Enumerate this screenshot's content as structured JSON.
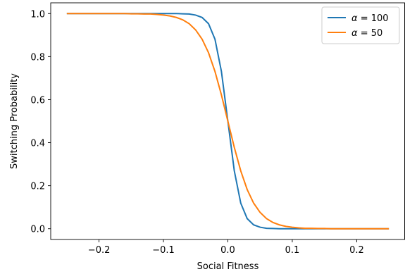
{
  "chart_data": {
    "type": "line",
    "title": "",
    "xlabel": "Social Fitness",
    "ylabel": "Switching Probability",
    "xlim": [
      -0.275,
      0.275
    ],
    "ylim": [
      -0.05,
      1.05
    ],
    "xticks": [
      -0.2,
      -0.1,
      0.0,
      0.1,
      0.2
    ],
    "xtick_labels": [
      "−0.2",
      "−0.1",
      "0.0",
      "0.1",
      "0.2"
    ],
    "yticks": [
      0.0,
      0.2,
      0.4,
      0.6,
      0.8,
      1.0
    ],
    "ytick_labels": [
      "0.0",
      "0.2",
      "0.4",
      "0.6",
      "0.8",
      "1.0"
    ],
    "grid": false,
    "legend_position": "top-right",
    "x": [
      -0.25,
      -0.24,
      -0.23,
      -0.22,
      -0.21,
      -0.2,
      -0.19,
      -0.18,
      -0.17,
      -0.16,
      -0.15,
      -0.14,
      -0.13,
      -0.12,
      -0.11,
      -0.1,
      -0.09,
      -0.08,
      -0.07,
      -0.06,
      -0.05,
      -0.04,
      -0.03,
      -0.02,
      -0.01,
      0.0,
      0.01,
      0.02,
      0.03,
      0.04,
      0.05,
      0.06,
      0.07,
      0.08,
      0.09,
      0.1,
      0.11,
      0.12,
      0.13,
      0.14,
      0.15,
      0.16,
      0.17,
      0.18,
      0.19,
      0.2,
      0.21,
      0.22,
      0.23,
      0.24,
      0.25
    ],
    "series": [
      {
        "name_prefix": "α",
        "name_suffix": " = 100",
        "color": "#1f77b4",
        "values": [
          1.0,
          1.0,
          1.0,
          1.0,
          1.0,
          1.0,
          1.0,
          1.0,
          1.0,
          1.0,
          1.0,
          1.0,
          1.0,
          1.0,
          1.0,
          1.0,
          1.0,
          1.0,
          0.999,
          0.998,
          0.993,
          0.982,
          0.953,
          0.881,
          0.731,
          0.5,
          0.269,
          0.119,
          0.047,
          0.018,
          0.007,
          0.002,
          0.001,
          0.0,
          0.0,
          0.0,
          0.0,
          0.0,
          0.0,
          0.0,
          0.0,
          0.0,
          0.0,
          0.0,
          0.0,
          0.0,
          0.0,
          0.0,
          0.0,
          0.0,
          0.0
        ]
      },
      {
        "name_prefix": "α",
        "name_suffix": " = 50",
        "color": "#ff7f0e",
        "values": [
          1.0,
          1.0,
          1.0,
          1.0,
          1.0,
          1.0,
          1.0,
          1.0,
          1.0,
          1.0,
          0.999,
          0.999,
          0.998,
          0.998,
          0.996,
          0.993,
          0.989,
          0.982,
          0.971,
          0.953,
          0.924,
          0.881,
          0.818,
          0.731,
          0.622,
          0.5,
          0.378,
          0.269,
          0.182,
          0.119,
          0.076,
          0.047,
          0.029,
          0.018,
          0.011,
          0.007,
          0.004,
          0.002,
          0.002,
          0.001,
          0.001,
          0.0,
          0.0,
          0.0,
          0.0,
          0.0,
          0.0,
          0.0,
          0.0,
          0.0,
          0.0
        ]
      }
    ]
  }
}
